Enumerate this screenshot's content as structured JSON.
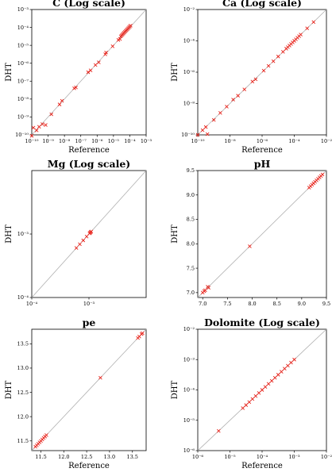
{
  "chart_data": [
    {
      "type": "scatter",
      "title": "C (Log scale)",
      "xlabel": "Reference",
      "ylabel": "DHT",
      "scale": "log",
      "xlim_exp": [
        -10,
        -3
      ],
      "ylim_exp": [
        -10,
        -3
      ],
      "ticks": [
        {
          "v": -10,
          "label": "10⁻¹⁰"
        },
        {
          "v": -9,
          "label": "10⁻⁹"
        },
        {
          "v": -8,
          "label": "10⁻⁸"
        },
        {
          "v": -7,
          "label": "10⁻⁷"
        },
        {
          "v": -6,
          "label": "10⁻⁶"
        },
        {
          "v": -5,
          "label": "10⁻⁵"
        },
        {
          "v": -4,
          "label": "10⁻⁴"
        },
        {
          "v": -3,
          "label": "10⁻³"
        }
      ],
      "points_exp": [
        [
          -10,
          -10.05
        ],
        [
          -9.9,
          -9.6
        ],
        [
          -9.7,
          -9.75
        ],
        [
          -9.55,
          -9.55
        ],
        [
          -9.35,
          -9.4
        ],
        [
          -9.15,
          -9.45
        ],
        [
          -8.8,
          -8.85
        ],
        [
          -8.3,
          -8.3
        ],
        [
          -8.15,
          -8.1
        ],
        [
          -7.4,
          -7.4
        ],
        [
          -7.3,
          -7.35
        ],
        [
          -6.55,
          -6.5
        ],
        [
          -6.4,
          -6.4
        ],
        [
          -6.1,
          -6.1
        ],
        [
          -5.9,
          -5.95
        ],
        [
          -5.5,
          -5.5
        ],
        [
          -5.45,
          -5.4
        ],
        [
          -5.05,
          -5.05
        ],
        [
          -4.7,
          -4.7
        ],
        [
          -4.6,
          -4.65
        ],
        [
          -4.55,
          -4.5
        ],
        [
          -4.5,
          -4.45
        ],
        [
          -4.45,
          -4.4
        ],
        [
          -4.4,
          -4.35
        ],
        [
          -4.35,
          -4.3
        ],
        [
          -4.3,
          -4.25
        ],
        [
          -4.25,
          -4.2
        ],
        [
          -4.2,
          -4.15
        ],
        [
          -4.15,
          -4.1
        ],
        [
          -4.1,
          -4.05
        ],
        [
          -4.05,
          -4.0
        ],
        [
          -4.0,
          -3.95
        ],
        [
          -3.95,
          -3.9
        ]
      ]
    },
    {
      "type": "scatter",
      "title": "Ca (Log scale)",
      "xlabel": "Reference",
      "ylabel": "DHT",
      "scale": "log",
      "xlim_exp": [
        -10,
        -2
      ],
      "ylim_exp": [
        -10,
        -2
      ],
      "ticks": [
        {
          "v": -10,
          "label": "10⁻¹⁰"
        },
        {
          "v": -8,
          "label": "10⁻⁸"
        },
        {
          "v": -6,
          "label": "10⁻⁶"
        },
        {
          "v": -4,
          "label": "10⁻⁴"
        },
        {
          "v": -2,
          "label": "10⁻²"
        }
      ],
      "points_exp": [
        [
          -10,
          -10.0
        ],
        [
          -9.7,
          -9.7
        ],
        [
          -9.5,
          -9.5
        ],
        [
          -9.4,
          -9.95
        ],
        [
          -9.0,
          -9.05
        ],
        [
          -8.6,
          -8.6
        ],
        [
          -8.2,
          -8.2
        ],
        [
          -7.8,
          -7.75
        ],
        [
          -7.5,
          -7.5
        ],
        [
          -7.1,
          -7.1
        ],
        [
          -6.6,
          -6.6
        ],
        [
          -6.4,
          -6.45
        ],
        [
          -5.9,
          -5.9
        ],
        [
          -5.6,
          -5.6
        ],
        [
          -5.3,
          -5.3
        ],
        [
          -5.0,
          -5.0
        ],
        [
          -4.7,
          -4.7
        ],
        [
          -4.5,
          -4.5
        ],
        [
          -4.4,
          -4.4
        ],
        [
          -4.3,
          -4.3
        ],
        [
          -4.2,
          -4.2
        ],
        [
          -4.1,
          -4.1
        ],
        [
          -4.0,
          -4.0
        ],
        [
          -3.9,
          -3.9
        ],
        [
          -3.8,
          -3.8
        ],
        [
          -3.7,
          -3.7
        ],
        [
          -3.6,
          -3.6
        ],
        [
          -3.2,
          -3.2
        ],
        [
          -2.8,
          -2.8
        ]
      ]
    },
    {
      "type": "scatter",
      "title": "Mg (Log scale)",
      "xlabel": "",
      "ylabel": "DHT",
      "scale": "log",
      "xlim_exp": [
        -4,
        -2
      ],
      "ylim_exp": [
        -4,
        -2
      ],
      "ticks": [
        {
          "v": -4,
          "label": "10⁻⁴"
        },
        {
          "v": -3,
          "label": "10⁻³"
        }
      ],
      "points_exp": [
        [
          -3.22,
          -3.22
        ],
        [
          -3.16,
          -3.16
        ],
        [
          -3.1,
          -3.1
        ],
        [
          -3.04,
          -3.04
        ],
        [
          -2.99,
          -2.99
        ],
        [
          -2.98,
          -2.98
        ],
        [
          -2.97,
          -2.97
        ],
        [
          -2.96,
          -2.96
        ]
      ]
    },
    {
      "type": "scatter",
      "title": "pH",
      "xlabel": "",
      "ylabel": "DHT",
      "scale": "linear",
      "xlim": [
        6.9,
        9.5
      ],
      "ylim": [
        6.9,
        9.5
      ],
      "ticks": [
        {
          "v": 7.0,
          "label": "7.0"
        },
        {
          "v": 7.5,
          "label": "7.5"
        },
        {
          "v": 8.0,
          "label": "8.0"
        },
        {
          "v": 8.5,
          "label": "8.5"
        },
        {
          "v": 9.0,
          "label": "9.0"
        },
        {
          "v": 9.5,
          "label": "9.5"
        }
      ],
      "points": [
        [
          7.0,
          7.0
        ],
        [
          7.03,
          7.03
        ],
        [
          7.05,
          7.05
        ],
        [
          7.1,
          7.12
        ],
        [
          7.12,
          7.1
        ],
        [
          7.95,
          7.95
        ],
        [
          9.15,
          9.15
        ],
        [
          9.18,
          9.18
        ],
        [
          9.21,
          9.21
        ],
        [
          9.24,
          9.24
        ],
        [
          9.27,
          9.27
        ],
        [
          9.3,
          9.3
        ],
        [
          9.33,
          9.33
        ],
        [
          9.36,
          9.36
        ],
        [
          9.39,
          9.39
        ],
        [
          9.42,
          9.42
        ]
      ]
    },
    {
      "type": "scatter",
      "title": "pe",
      "xlabel": "Reference",
      "ylabel": "DHT",
      "scale": "linear",
      "xlim": [
        11.3,
        13.8
      ],
      "ylim": [
        11.3,
        13.8
      ],
      "ticks": [
        {
          "v": 11.5,
          "label": "11.5"
        },
        {
          "v": 12.0,
          "label": "12.0"
        },
        {
          "v": 12.5,
          "label": "12.5"
        },
        {
          "v": 13.0,
          "label": "13.0"
        },
        {
          "v": 13.5,
          "label": "13.5"
        }
      ],
      "points": [
        [
          11.38,
          11.38
        ],
        [
          11.41,
          11.41
        ],
        [
          11.44,
          11.44
        ],
        [
          11.47,
          11.47
        ],
        [
          11.5,
          11.5
        ],
        [
          11.53,
          11.53
        ],
        [
          11.56,
          11.56
        ],
        [
          11.59,
          11.59
        ],
        [
          11.62,
          11.62
        ],
        [
          12.8,
          12.8
        ],
        [
          13.62,
          13.62
        ],
        [
          13.65,
          13.65
        ],
        [
          13.7,
          13.7
        ],
        [
          13.72,
          13.72
        ]
      ]
    },
    {
      "type": "scatter",
      "title": "Dolomite (Log scale)",
      "xlabel": "Reference",
      "ylabel": "DHT",
      "scale": "log",
      "xlim_exp": [
        -6,
        -2
      ],
      "ylim_exp": [
        -6,
        -2
      ],
      "ticks": [
        {
          "v": -6,
          "label": "10⁻⁶"
        },
        {
          "v": -5,
          "label": "10⁻⁵"
        },
        {
          "v": -4,
          "label": "10⁻⁴"
        },
        {
          "v": -3,
          "label": "10⁻³"
        },
        {
          "v": -2,
          "label": "10⁻²"
        }
      ],
      "points_exp": [
        [
          -5.35,
          -5.35
        ],
        [
          -4.6,
          -4.6
        ],
        [
          -4.5,
          -4.5
        ],
        [
          -4.4,
          -4.4
        ],
        [
          -4.3,
          -4.3
        ],
        [
          -4.2,
          -4.2
        ],
        [
          -4.1,
          -4.1
        ],
        [
          -4.0,
          -4.0
        ],
        [
          -3.9,
          -3.9
        ],
        [
          -3.8,
          -3.8
        ],
        [
          -3.7,
          -3.7
        ],
        [
          -3.6,
          -3.6
        ],
        [
          -3.5,
          -3.5
        ],
        [
          -3.4,
          -3.4
        ],
        [
          -3.3,
          -3.3
        ],
        [
          -3.2,
          -3.2
        ],
        [
          -3.1,
          -3.1
        ],
        [
          -3.0,
          -3.0
        ]
      ]
    }
  ]
}
